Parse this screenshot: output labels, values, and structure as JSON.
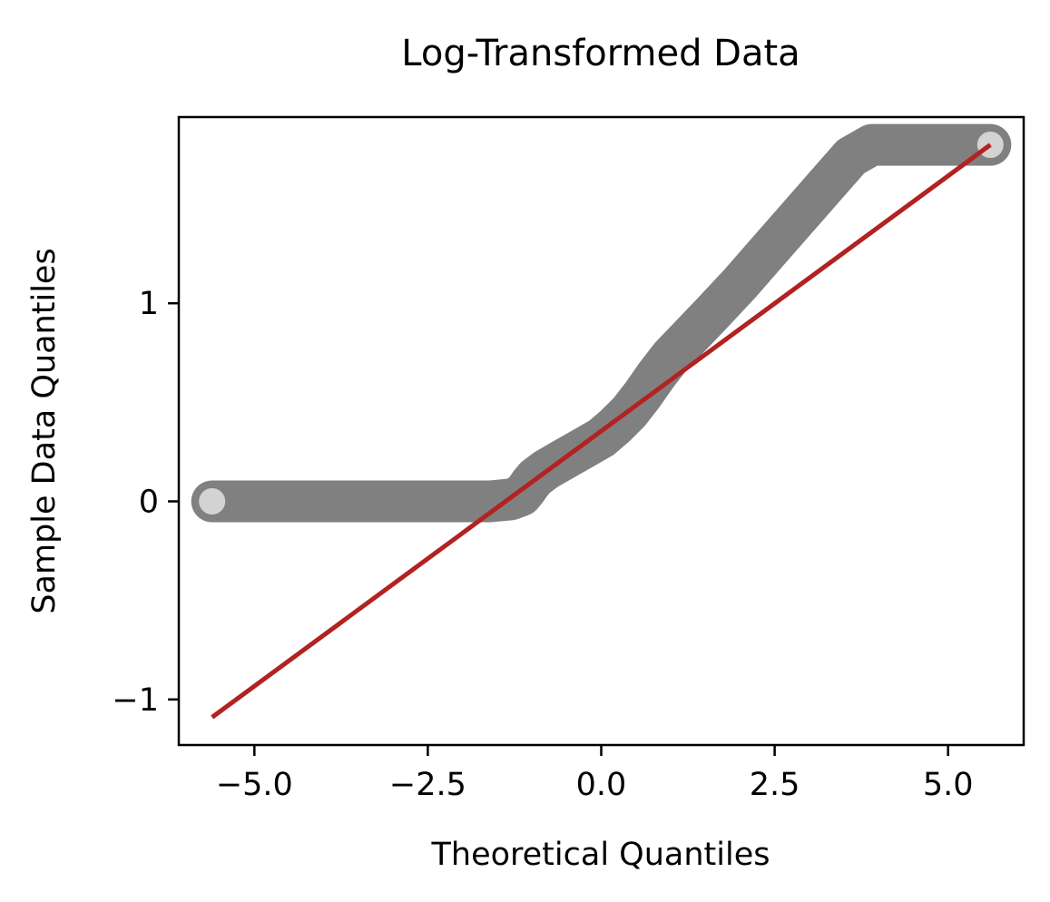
{
  "chart_data": {
    "type": "scatter",
    "title": "Log-Transformed Data",
    "xlabel": "Theoretical Quantiles",
    "ylabel": "Sample Data Quantiles",
    "xlim": [
      -6.09,
      6.09
    ],
    "ylim": [
      -1.23,
      1.94
    ],
    "x_ticks": [
      -5.0,
      -2.5,
      0.0,
      2.5,
      5.0
    ],
    "x_tick_labels": [
      "−5.0",
      "−2.5",
      "0.0",
      "2.5",
      "5.0"
    ],
    "y_ticks": [
      -1,
      0,
      1
    ],
    "y_tick_labels": [
      "−1",
      "0",
      "1"
    ],
    "grid": false,
    "legend": "none",
    "series": [
      {
        "kind": "points",
        "color": "#808080",
        "face_color": "#d3d3d3",
        "x": [
          -5.61,
          -5.5,
          -5.4,
          -5.2,
          -5.0,
          -4.5,
          -4.0,
          -3.5,
          -3.0,
          -2.5,
          -2.0,
          -1.6,
          -1.3,
          -1.15,
          -1.08,
          -1.02,
          -0.95,
          -0.8,
          -0.6,
          -0.4,
          -0.2,
          0.0,
          0.2,
          0.4,
          0.6,
          0.8,
          1.0,
          1.3,
          1.6,
          2.0,
          2.4,
          2.8,
          3.2,
          3.6,
          3.9,
          4.05,
          4.3,
          4.7,
          5.1,
          5.4,
          5.61
        ],
        "y": [
          0.0,
          0.0,
          0.0,
          0.0,
          0.0,
          0.0,
          0.0,
          0.0,
          0.0,
          0.0,
          0.0,
          0.0,
          0.01,
          0.03,
          0.06,
          0.09,
          0.12,
          0.16,
          0.2,
          0.24,
          0.28,
          0.32,
          0.38,
          0.45,
          0.54,
          0.64,
          0.73,
          0.84,
          0.95,
          1.1,
          1.26,
          1.42,
          1.58,
          1.74,
          1.8,
          1.8,
          1.8,
          1.8,
          1.8,
          1.8,
          1.8
        ]
      },
      {
        "kind": "reference-line",
        "color": "#b22222",
        "x": [
          -5.61,
          5.61
        ],
        "y": [
          -1.09,
          1.8
        ]
      }
    ]
  }
}
